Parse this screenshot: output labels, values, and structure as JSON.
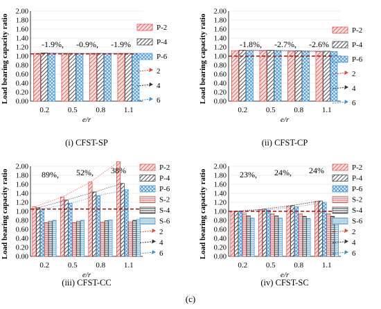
{
  "figure_label": "(c)",
  "colors": {
    "P-2": "#e8413c",
    "P-4": "#333333",
    "P-6": "#3b8fd6",
    "S-2": "#e8413c",
    "S-4": "#333333",
    "S-6": "#3b8fd6",
    "refline": "#a01010",
    "grid": "#d9d9d9"
  },
  "chart_data": [
    {
      "type": "bar",
      "caption": "(i) CFST-SP",
      "xlabel": "e/r",
      "ylabel": "Load bearing capacity ratio",
      "categories": [
        "0.2",
        "0.5",
        "0.8",
        "1.1"
      ],
      "ylim": [
        0,
        2.0
      ],
      "yticks": [
        "0.00",
        "0.20",
        "0.40",
        "0.60",
        "0.80",
        "1.00",
        "1.20",
        "1.40",
        "1.60",
        "1.80",
        "2.00"
      ],
      "grid": true,
      "series": [
        {
          "name": "P-2",
          "values": [
            1.06,
            1.06,
            1.06,
            1.06
          ]
        },
        {
          "name": "P-4",
          "values": [
            1.07,
            1.06,
            1.06,
            1.06
          ]
        },
        {
          "name": "P-6",
          "values": [
            1.06,
            1.06,
            1.06,
            1.06
          ]
        }
      ],
      "trend_lines": [
        "2",
        "4",
        "6"
      ],
      "reference_line": 1.05,
      "annotations": [
        {
          "text": "-1.9%,",
          "color": "#e8413c"
        },
        {
          "text": "-0.9%,",
          "color": "#000000"
        },
        {
          "text": "-1.9%",
          "color": "#3b8fd6"
        }
      ],
      "legend": [
        "P-2",
        "P-4",
        "P-6",
        "2",
        "4",
        "6"
      ]
    },
    {
      "type": "bar",
      "caption": "(ii) CFST-CP",
      "xlabel": "e/r",
      "ylabel": "Load bearing capacity ratio",
      "categories": [
        "0.2",
        "0.5",
        "0.8",
        "1.1"
      ],
      "ylim": [
        0,
        2.0
      ],
      "yticks": [
        "0.00",
        "0.20",
        "0.40",
        "0.60",
        "0.80",
        "1.00",
        "1.20",
        "1.40",
        "1.60",
        "1.80",
        "2.00"
      ],
      "grid": true,
      "series": [
        {
          "name": "P-2",
          "values": [
            1.12,
            1.12,
            1.11,
            1.1
          ]
        },
        {
          "name": "P-4",
          "values": [
            1.13,
            1.13,
            1.12,
            1.11
          ]
        },
        {
          "name": "P-6",
          "values": [
            1.12,
            1.12,
            1.11,
            1.1
          ]
        }
      ],
      "trend_lines": [
        "2",
        "4",
        "6"
      ],
      "reference_line": 1.0,
      "annotations": [
        {
          "text": "-1.8%,",
          "color": "#e8413c"
        },
        {
          "text": "-2.7%,",
          "color": "#000000"
        },
        {
          "text": "-2.6%",
          "color": "#3b8fd6"
        }
      ],
      "legend": [
        "P-2",
        "P-4",
        "P-6",
        "2",
        "4",
        "6"
      ]
    },
    {
      "type": "bar",
      "caption": "(iii) CFST-CC",
      "xlabel": "e/r",
      "ylabel": "Load bearing capacity ratio",
      "categories": [
        "0.2",
        "0.5",
        "0.8",
        "1.1"
      ],
      "ylim": [
        0,
        2.2
      ],
      "yticks": [
        "0.00",
        "0.20",
        "0.40",
        "0.60",
        "0.80",
        "1.00",
        "1.20",
        "1.40",
        "1.60",
        "1.80",
        "2.00"
      ],
      "grid": true,
      "series": [
        {
          "name": "P-2",
          "values": [
            1.1,
            1.32,
            1.65,
            2.1
          ]
        },
        {
          "name": "P-4",
          "values": [
            1.08,
            1.25,
            1.43,
            1.62
          ]
        },
        {
          "name": "P-6",
          "values": [
            1.05,
            1.18,
            1.35,
            1.48
          ]
        },
        {
          "name": "S-2",
          "values": [
            0.75,
            0.75,
            0.76,
            0.77
          ]
        },
        {
          "name": "S-4",
          "values": [
            0.78,
            0.78,
            0.79,
            0.8
          ]
        },
        {
          "name": "S-6",
          "values": [
            0.8,
            0.8,
            0.81,
            0.82
          ]
        }
      ],
      "trend_lines": [
        "2",
        "4",
        "6"
      ],
      "reference_line": 1.05,
      "annotations": [
        {
          "text": "89%,",
          "color": "#e8413c"
        },
        {
          "text": "52%,",
          "color": "#000000"
        },
        {
          "text": "38%",
          "color": "#3b8fd6"
        }
      ],
      "legend": [
        "P-2",
        "P-4",
        "P-6",
        "S-2",
        "S-4",
        "S-6",
        "2",
        "4",
        "6"
      ]
    },
    {
      "type": "bar",
      "caption": "(iv) CFST-SC",
      "xlabel": "e/r",
      "ylabel": "Load bearing capacity ratio",
      "categories": [
        "0.2",
        "0.5",
        "0.8",
        "1.1"
      ],
      "ylim": [
        0,
        2.2
      ],
      "yticks": [
        "0.00",
        "0.20",
        "0.40",
        "0.60",
        "0.80",
        "1.00",
        "1.20",
        "1.40",
        "1.60",
        "1.80",
        "2.00"
      ],
      "grid": true,
      "series": [
        {
          "name": "P-2",
          "values": [
            1.0,
            1.04,
            1.12,
            1.22
          ]
        },
        {
          "name": "P-4",
          "values": [
            1.0,
            1.05,
            1.13,
            1.23
          ]
        },
        {
          "name": "P-6",
          "values": [
            1.0,
            1.03,
            1.1,
            1.2
          ]
        },
        {
          "name": "S-2",
          "values": [
            0.96,
            0.95,
            0.95,
            0.95
          ]
        },
        {
          "name": "S-4",
          "values": [
            0.9,
            0.9,
            0.89,
            0.89
          ]
        },
        {
          "name": "S-6",
          "values": [
            0.85,
            0.85,
            0.84,
            0.84
          ]
        }
      ],
      "trend_lines": [
        "2",
        "4",
        "6"
      ],
      "reference_line": 1.0,
      "annotations": [
        {
          "text": "23%,",
          "color": "#e8413c"
        },
        {
          "text": "24%,",
          "color": "#000000"
        },
        {
          "text": "24%",
          "color": "#3b8fd6"
        }
      ],
      "legend": [
        "P-2",
        "P-4",
        "P-6",
        "S-2",
        "S-4",
        "S-6",
        "2",
        "4",
        "6"
      ]
    }
  ]
}
